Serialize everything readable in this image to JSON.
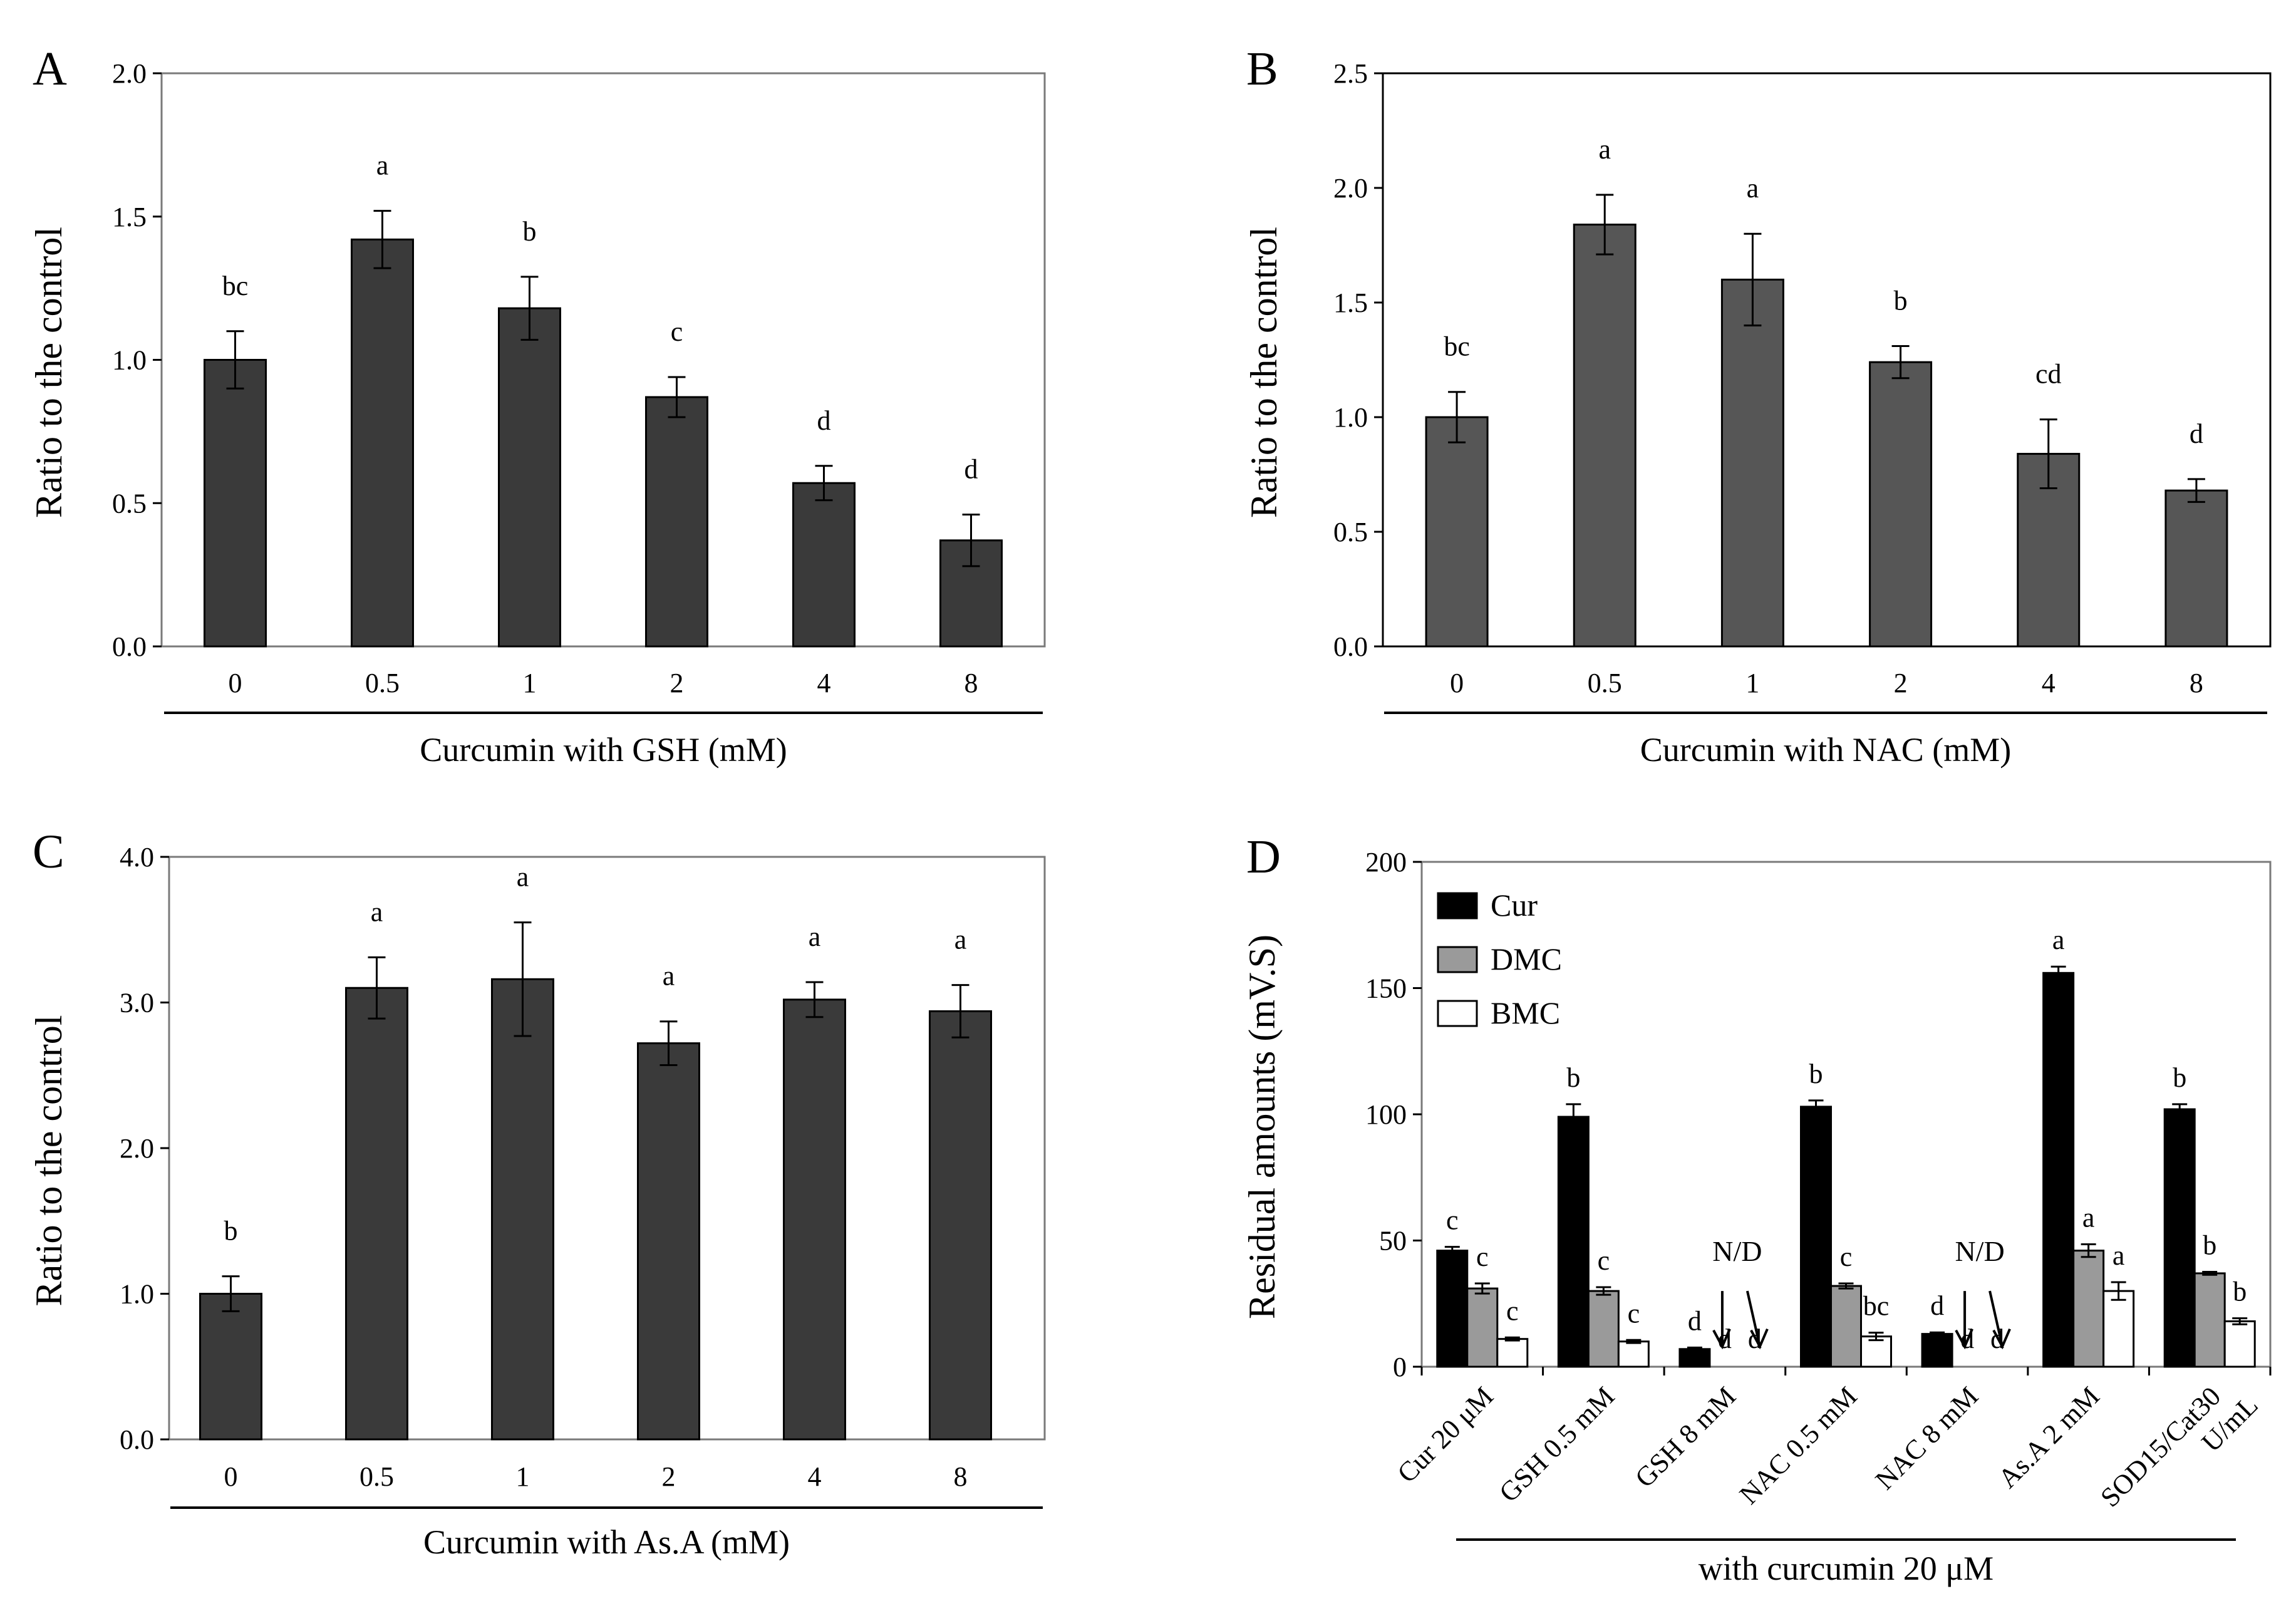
{
  "figure": {
    "panel_count": 4
  },
  "chart_data": [
    {
      "panel": "A",
      "type": "bar",
      "title": "",
      "ylabel": "Ratio to the control",
      "xlabel": "Curcumin  with  GSH (mM)",
      "ylim": [
        0,
        2.0
      ],
      "yticks": [
        "0.0",
        "0.5",
        "1.0",
        "1.5",
        "2.0"
      ],
      "categories": [
        "0",
        "0.5",
        "1",
        "2",
        "4",
        "8"
      ],
      "values": [
        1.0,
        1.42,
        1.18,
        0.87,
        0.57,
        0.37
      ],
      "errors": [
        0.1,
        0.1,
        0.11,
        0.07,
        0.06,
        0.09
      ],
      "letters": [
        "bc",
        "a",
        "b",
        "c",
        "d",
        "d"
      ],
      "bar_color": "#3a3a3a"
    },
    {
      "panel": "B",
      "type": "bar",
      "title": "",
      "ylabel": "Ratio to the control",
      "xlabel": "Curcumin  with  NAC (mM)",
      "ylim": [
        0,
        2.5
      ],
      "yticks": [
        "0.0",
        "0.5",
        "1.0",
        "1.5",
        "2.0",
        "2.5"
      ],
      "categories": [
        "0",
        "0.5",
        "1",
        "2",
        "4",
        "8"
      ],
      "values": [
        1.0,
        1.84,
        1.6,
        1.24,
        0.84,
        0.68
      ],
      "errors": [
        0.11,
        0.13,
        0.2,
        0.07,
        0.15,
        0.05
      ],
      "letters": [
        "bc",
        "a",
        "a",
        "b",
        "cd",
        "d"
      ],
      "bar_color": "#565656"
    },
    {
      "panel": "C",
      "type": "bar",
      "title": "",
      "ylabel": "Ratio to the control",
      "xlabel": "Curcumin  with  As.A (mM)",
      "ylim": [
        0,
        4.0
      ],
      "yticks": [
        "0.0",
        "1.0",
        "2.0",
        "3.0",
        "4.0"
      ],
      "categories": [
        "0",
        "0.5",
        "1",
        "2",
        "4",
        "8"
      ],
      "values": [
        1.0,
        3.1,
        3.16,
        2.72,
        3.02,
        2.94
      ],
      "errors": [
        0.12,
        0.21,
        0.39,
        0.15,
        0.12,
        0.18
      ],
      "letters": [
        "b",
        "a",
        "a",
        "a",
        "a",
        "a"
      ],
      "bar_color": "#3a3a3a"
    },
    {
      "panel": "D",
      "type": "bar",
      "title": "",
      "ylabel": "Residual  amounts  (mV.S)",
      "xlabel": "with curcumin 20 μM",
      "ylim": [
        0,
        200
      ],
      "yticks": [
        "0",
        "50",
        "100",
        "150",
        "200"
      ],
      "categories": [
        "Cur 20 μM",
        "GSH 0.5 mM",
        "GSH 8 mM",
        "NAC 0.5 mM",
        "NAC 8 mM",
        "As.A 2 mM",
        "SOD15/Cat30|U/mL"
      ],
      "series": [
        {
          "name": "Cur",
          "color": "#000000",
          "values": [
            46,
            99,
            7,
            103,
            13,
            156,
            102
          ],
          "errors": [
            1.5,
            5,
            0.6,
            2.5,
            0.6,
            2.5,
            2
          ],
          "letters": [
            "c",
            "b",
            "d",
            "b",
            "d",
            "a",
            "b"
          ]
        },
        {
          "name": "DMC",
          "color": "#9a9a9a",
          "values": [
            31,
            30,
            0,
            32,
            0,
            46,
            37
          ],
          "errors": [
            2,
            1.5,
            0,
            1,
            0,
            2.5,
            0.6
          ],
          "letters": [
            "c",
            "c",
            "d",
            "c",
            "d",
            "a",
            "b"
          ]
        },
        {
          "name": "BMC",
          "color": "#ffffff",
          "values": [
            11,
            10,
            0,
            12,
            0,
            30,
            18
          ],
          "errors": [
            0.6,
            0.6,
            0,
            1.5,
            0,
            3.5,
            1.2
          ],
          "letters": [
            "c",
            "c",
            "d",
            "bc",
            "d",
            "a",
            "b"
          ]
        }
      ],
      "annotations": [
        "N/D",
        "N/D"
      ],
      "legend_position": "top-left"
    }
  ]
}
